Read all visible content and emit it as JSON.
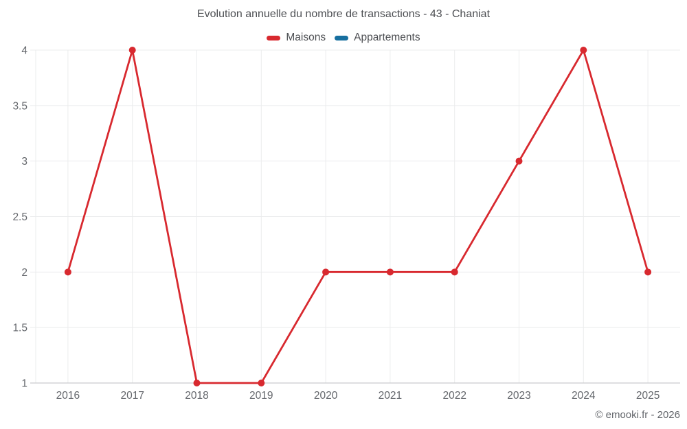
{
  "title": "Evolution annuelle du nombre de transactions - 43 - Chaniat",
  "legend": [
    {
      "label": "Maisons",
      "color": "#d8292f"
    },
    {
      "label": "Appartements",
      "color": "#176f9f"
    }
  ],
  "footer": {
    "copyright": "© emooki.fr - 2026"
  },
  "appearance": {
    "grid_color": "#ebeced",
    "axis_line_color": "#c9cbcd",
    "tick_text_color": "#63666b",
    "background": "#ffffff"
  },
  "chart_data": {
    "type": "line",
    "title": "Evolution annuelle du nombre de transactions - 43 - Chaniat",
    "categories": [
      "2016",
      "2017",
      "2018",
      "2019",
      "2020",
      "2021",
      "2022",
      "2023",
      "2024",
      "2025"
    ],
    "series": [
      {
        "name": "Maisons",
        "color": "#d8292f",
        "values": [
          2,
          4,
          1,
          1,
          2,
          2,
          2,
          3,
          4,
          2
        ]
      },
      {
        "name": "Appartements",
        "color": "#176f9f",
        "values": []
      }
    ],
    "xlabel": "",
    "ylabel": "",
    "ylim": [
      1,
      4
    ],
    "yticks": [
      1,
      1.5,
      2,
      2.5,
      3,
      3.5,
      4
    ],
    "grid": true,
    "legend_position": "top",
    "point_radius": 5,
    "line_width": 2.8
  }
}
